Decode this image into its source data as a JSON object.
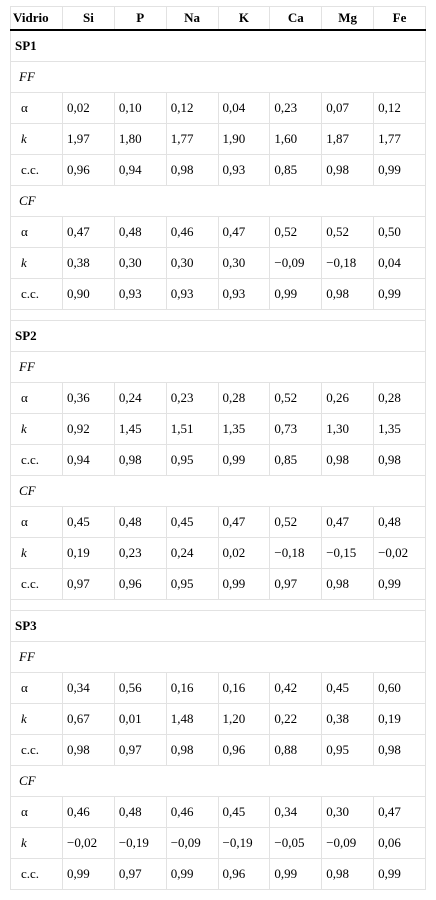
{
  "headers": [
    "Vidrio",
    "Si",
    "P",
    "Na",
    "K",
    "Ca",
    "Mg",
    "Fe"
  ],
  "sections": [
    {
      "title": "SP1",
      "groups": [
        {
          "name": "FF",
          "rows": [
            {
              "label": "α",
              "values": [
                "0,02",
                "0,10",
                "0,12",
                "0,04",
                "0,23",
                "0,07",
                "0,12"
              ]
            },
            {
              "label": "k",
              "values": [
                "1,97",
                "1,80",
                "1,77",
                "1,90",
                "1,60",
                "1,87",
                "1,77"
              ]
            },
            {
              "label": "c.c.",
              "values": [
                "0,96",
                "0,94",
                "0,98",
                "0,93",
                "0,85",
                "0,98",
                "0,99"
              ]
            }
          ]
        },
        {
          "name": "CF",
          "rows": [
            {
              "label": "α",
              "values": [
                "0,47",
                "0,48",
                "0,46",
                "0,47",
                "0,52",
                "0,52",
                "0,50"
              ]
            },
            {
              "label": "k",
              "values": [
                "0,38",
                "0,30",
                "0,30",
                "0,30",
                "−0,09",
                "−0,18",
                "0,04"
              ]
            },
            {
              "label": "c.c.",
              "values": [
                "0,90",
                "0,93",
                "0,93",
                "0,93",
                "0,99",
                "0,98",
                "0,99"
              ]
            }
          ]
        }
      ]
    },
    {
      "title": "SP2",
      "groups": [
        {
          "name": "FF",
          "rows": [
            {
              "label": "α",
              "values": [
                "0,36",
                "0,24",
                "0,23",
                "0,28",
                "0,52",
                "0,26",
                "0,28"
              ]
            },
            {
              "label": "k",
              "values": [
                "0,92",
                "1,45",
                "1,51",
                "1,35",
                "0,73",
                "1,30",
                "1,35"
              ]
            },
            {
              "label": "c.c.",
              "values": [
                "0,94",
                "0,98",
                "0,95",
                "0,99",
                "0,85",
                "0,98",
                "0,98"
              ]
            }
          ]
        },
        {
          "name": "CF",
          "rows": [
            {
              "label": "α",
              "values": [
                "0,45",
                "0,48",
                "0,45",
                "0,47",
                "0,52",
                "0,47",
                "0,48"
              ]
            },
            {
              "label": "k",
              "values": [
                "0,19",
                "0,23",
                "0,24",
                "0,02",
                "−0,18",
                "−0,15",
                "−0,02"
              ]
            },
            {
              "label": "c.c.",
              "values": [
                "0,97",
                "0,96",
                "0,95",
                "0,99",
                "0,97",
                "0,98",
                "0,99"
              ]
            }
          ]
        }
      ]
    },
    {
      "title": "SP3",
      "groups": [
        {
          "name": "FF",
          "rows": [
            {
              "label": "α",
              "values": [
                "0,34",
                "0,56",
                "0,16",
                "0,16",
                "0,42",
                "0,45",
                "0,60"
              ]
            },
            {
              "label": "k",
              "values": [
                "0,67",
                "0,01",
                "1,48",
                "1,20",
                "0,22",
                "0,38",
                "0,19"
              ]
            },
            {
              "label": "c.c.",
              "values": [
                "0,98",
                "0,97",
                "0,98",
                "0,96",
                "0,88",
                "0,95",
                "0,98"
              ]
            }
          ]
        },
        {
          "name": "CF",
          "rows": [
            {
              "label": "α",
              "values": [
                "0,46",
                "0,48",
                "0,46",
                "0,45",
                "0,34",
                "0,30",
                "0,47"
              ]
            },
            {
              "label": "k",
              "values": [
                "−0,02",
                "−0,19",
                "−0,09",
                "−0,19",
                "−0,05",
                "−0,09",
                "0,06"
              ]
            },
            {
              "label": "c.c.",
              "values": [
                "0,99",
                "0,97",
                "0,99",
                "0,96",
                "0,99",
                "0,98",
                "0,99"
              ]
            }
          ]
        }
      ]
    }
  ]
}
